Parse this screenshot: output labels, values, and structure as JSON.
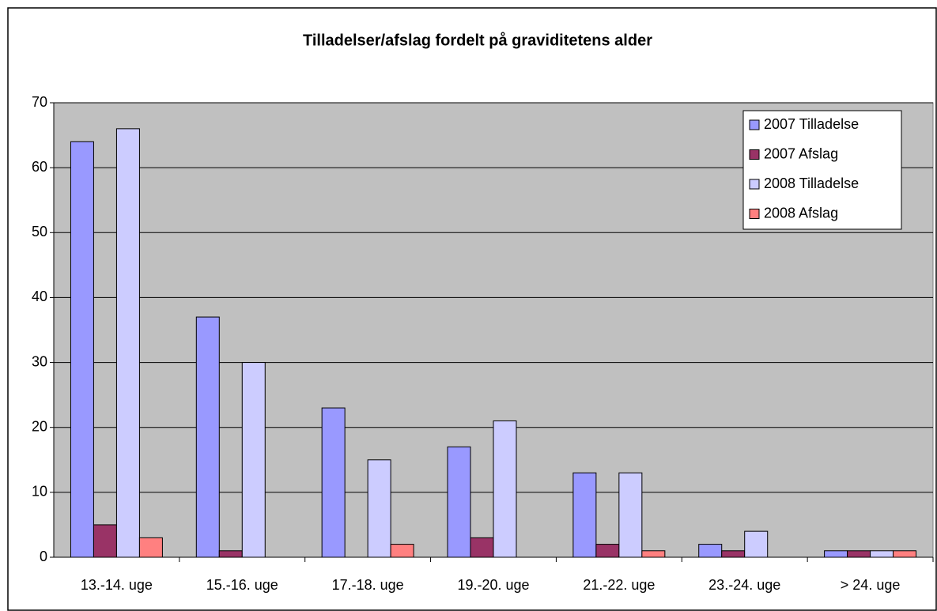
{
  "chart_data": {
    "type": "bar",
    "title": "Tilladelser/afslag fordelt på graviditetens alder",
    "categories": [
      "13.-14. uge",
      "15.-16. uge",
      "17.-18. uge",
      "19.-20. uge",
      "21.-22. uge",
      "23.-24. uge",
      "> 24. uge"
    ],
    "series": [
      {
        "name": "2007 Tilladelse",
        "color": "#9999ff",
        "values": [
          64,
          37,
          23,
          17,
          13,
          2,
          1
        ]
      },
      {
        "name": "2007 Afslag",
        "color": "#993366",
        "values": [
          5,
          1,
          0,
          3,
          2,
          1,
          1
        ]
      },
      {
        "name": "2008 Tilladelse",
        "color": "#ccccff",
        "values": [
          66,
          30,
          15,
          21,
          13,
          4,
          1
        ]
      },
      {
        "name": "2008 Afslag",
        "color": "#ff8080",
        "values": [
          3,
          0,
          2,
          0,
          1,
          0,
          1
        ]
      }
    ],
    "ylim": [
      0,
      70
    ],
    "yticks": [
      0,
      10,
      20,
      30,
      40,
      50,
      60,
      70
    ],
    "grid": true,
    "legend": "top-right",
    "plot_background": "#c0c0c0"
  }
}
